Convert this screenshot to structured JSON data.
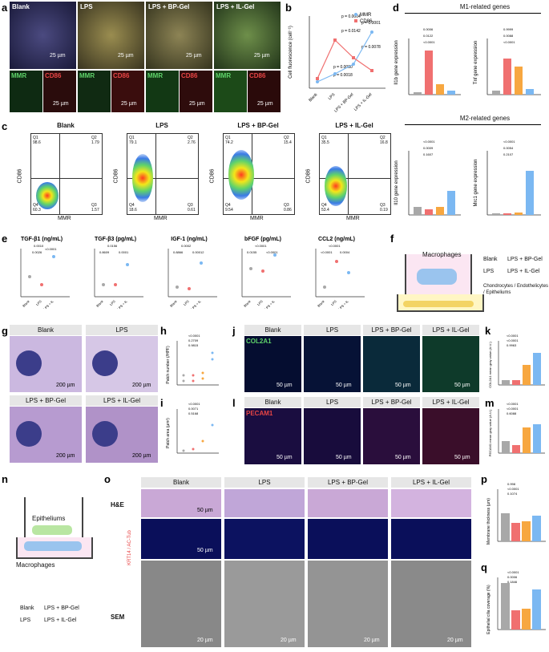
{
  "panels": {
    "a": "a",
    "b": "b",
    "c": "c",
    "d": "d",
    "e": "e",
    "f": "f",
    "g": "g",
    "h": "h",
    "i": "i",
    "j": "j",
    "k": "k",
    "l": "l",
    "m": "m",
    "n": "n",
    "o": "o",
    "p": "p",
    "q": "q"
  },
  "groups": [
    "Blank",
    "LPS",
    "LPS + BP-Gel",
    "LPS + IL-Gel"
  ],
  "groups_short": [
    "Blank",
    "LPS",
    "LPS + IL"
  ],
  "a": {
    "mmr": "MMR",
    "cd86": "CD86",
    "scale_25": "25 µm"
  },
  "b": {
    "ylabel": "Cell fluorescence (cell⁻¹)",
    "legend": [
      "MMR",
      "CD86"
    ],
    "pvals": [
      "p = 0.0004",
      "p = 0.0142",
      "p = 0.0001",
      "p = 0.0078",
      "p = 0.0080",
      "p = 0.0018"
    ],
    "xcats": [
      "Blank",
      "LPS",
      "LPS + BP-Gel",
      "LPS + IL-Gel"
    ]
  },
  "c": {
    "titles": [
      "Blank",
      "LPS",
      "LPS + BP-Gel",
      "LPS + IL-Gel"
    ],
    "xlabel": "MMR",
    "ylabel": "CD86",
    "quadrants": [
      [
        "Q1",
        "98.6",
        "Q2",
        "1.79",
        "Q4",
        "60.3",
        "Q3",
        "1.57"
      ],
      [
        "Q1",
        "79.1",
        "Q2",
        "2.76",
        "Q4",
        "18.6",
        "Q3",
        "0.61"
      ],
      [
        "Q1",
        "74.2",
        "Q2",
        "15.4",
        "Q4",
        "9.54",
        "Q3",
        "0.86"
      ],
      [
        "Q1",
        "35.5",
        "Q2",
        "16.8",
        "Q4",
        "53.4",
        "Q3",
        "0.19"
      ]
    ]
  },
  "d": {
    "m1_title": "M1-related genes",
    "m2_title": "M2-related genes",
    "charts": [
      {
        "ylabel": "Il1b gene expression",
        "ticks": [
          "0",
          "10",
          "20",
          "30"
        ],
        "pvals": [
          "0.0006",
          "0.0122",
          "<0.0001"
        ]
      },
      {
        "ylabel": "Tnf gene expression",
        "ticks": [
          "0",
          "5",
          "10",
          "15"
        ],
        "pvals": [
          "0.9999",
          "0.0088",
          "<0.0001"
        ]
      },
      {
        "ylabel": "Il10 gene expression",
        "ticks": [
          "0",
          "1",
          "2",
          "3"
        ],
        "pvals": [
          "<0.0001",
          "0.0009",
          "0.1607"
        ]
      },
      {
        "ylabel": "Mrc1 gene expression",
        "ticks": [
          "0",
          "9",
          "18",
          "27"
        ],
        "pvals": [
          "<0.0001",
          "0.0054",
          "0.2107"
        ]
      }
    ]
  },
  "e": {
    "charts": [
      {
        "title": "TGF-β1 (ng/mL)",
        "ticks": [
          "0.05",
          "0.10",
          "0.15"
        ],
        "pvals": [
          "0.0010",
          "0.0026",
          "<0.0001"
        ]
      },
      {
        "title": "TGF-β3 (pg/mL)",
        "ticks": [
          "0",
          "50",
          "100",
          "150"
        ],
        "pvals": [
          "0.0156",
          "0.8609",
          "0.0001"
        ]
      },
      {
        "title": "IGF-1 (ng/mL)",
        "ticks": [
          "0",
          "20",
          "40",
          "60"
        ],
        "pvals": [
          "0.0002",
          "0.8866",
          "0.00012"
        ]
      },
      {
        "title": "bFGF (pg/mL)",
        "ticks": [
          "0",
          "10",
          "20",
          "30"
        ],
        "pvals": [
          "<0.0001",
          "0.0155",
          "<0.0001"
        ]
      },
      {
        "title": "CCL2 (ng/mL)",
        "ticks": [
          "0.0",
          "0.5",
          "1.0",
          "1.5"
        ],
        "pvals": [
          "<0.0001",
          "<0.0001",
          "0.0004"
        ]
      }
    ]
  },
  "f": {
    "macrophages": "Macrophages",
    "cond1": "Blank",
    "cond2": "LPS + BP-Gel",
    "cond3": "LPS",
    "cond4": "LPS + IL-Gel",
    "cells": "Chondrocytes / Endothelicytes / Epitheliums"
  },
  "g": {
    "scale": "200 µm"
  },
  "h": {
    "ylabel": "Patch number (/HPF)",
    "ticks": [
      "0",
      "2",
      "4",
      "6"
    ],
    "pvals": [
      "<0.0001",
      "0.2709",
      "0.9815"
    ]
  },
  "i": {
    "ylabel": "Patch area (µm²)",
    "pvals": [
      "<0.0001",
      "0.0071",
      "0.5168"
    ]
  },
  "j": {
    "stain": "COL2A1",
    "scale": "50 µm"
  },
  "k": {
    "ylabel": "COL2A1 mean gray value (A.U.)",
    "pvals": [
      "<0.0001",
      "<0.0001",
      "0.9963"
    ]
  },
  "l": {
    "stain": "PECAM1",
    "scale": "50 µm"
  },
  "m": {
    "ylabel": "PECAM1 mean gray value (A.U.)",
    "pvals": [
      "<0.0001",
      "<0.0001",
      "0.6088"
    ]
  },
  "n": {
    "epi": "Epitheliums",
    "mac": "Macrophages",
    "cond1": "Blank",
    "cond2": "LPS + BP-Gel",
    "cond3": "LPS",
    "cond4": "LPS + IL-Gel"
  },
  "o": {
    "rows": [
      "H&E",
      "KRT14 / AC-Tub",
      "SEM"
    ],
    "scale50": "50 µm",
    "scale20": "20 µm"
  },
  "p": {
    "ylabel": "Membrane thickness (µm)",
    "pvals": [
      "0.998",
      "<0.0001",
      "0.1074"
    ]
  },
  "q": {
    "ylabel": "Epithelial cilia coverage (%)",
    "pvals": [
      "<0.0001",
      "0.0006",
      "0.1846"
    ]
  },
  "colors": {
    "blank": "#a8a8a8",
    "lps": "#f07070",
    "bp": "#f7a740",
    "il": "#7bb8f2",
    "mmr": "#7bb8f2",
    "cd86": "#f07070"
  }
}
